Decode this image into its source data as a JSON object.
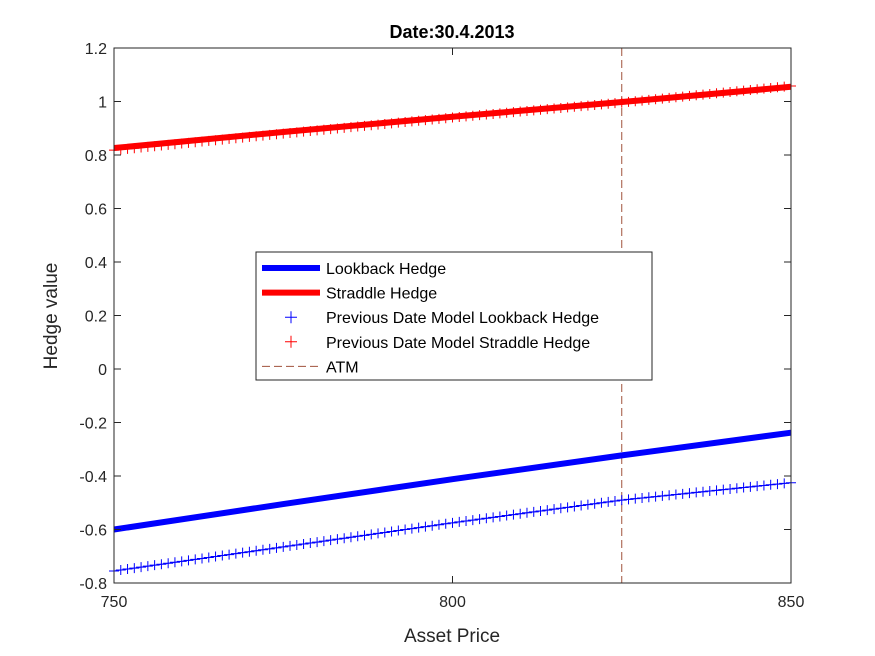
{
  "chart_data": {
    "type": "line",
    "title": "Date:30.4.2013",
    "xlabel": "Asset Price",
    "ylabel": "Hedge value",
    "xlim": [
      750,
      850
    ],
    "ylim": [
      -0.8,
      1.2
    ],
    "xticks": [
      750,
      800,
      850
    ],
    "xtick_labels": [
      "750",
      "800",
      "850"
    ],
    "yticks": [
      -0.8,
      -0.6,
      -0.4,
      -0.2,
      0,
      0.2,
      0.4,
      0.6,
      0.8,
      1,
      1.2
    ],
    "ytick_labels": [
      "-0.8",
      "-0.6",
      "-0.4",
      "-0.2",
      "0",
      "0.2",
      "0.4",
      "0.6",
      "0.8",
      "1",
      "1.2"
    ],
    "grid": false,
    "legend_position": "center-left",
    "series": [
      {
        "name": "Lookback Hedge",
        "style": "line",
        "color": "#0000ff",
        "x": [
          750,
          775,
          800,
          825,
          850
        ],
        "y": [
          -0.6,
          -0.505,
          -0.412,
          -0.323,
          -0.238
        ]
      },
      {
        "name": "Straddle Hedge",
        "style": "line",
        "color": "#ff0000",
        "x": [
          750,
          775,
          800,
          825,
          850
        ],
        "y": [
          0.826,
          0.886,
          0.943,
          0.998,
          1.055
        ]
      },
      {
        "name": "Previous Date Model Lookback Hedge",
        "style": "plus",
        "color": "#0000ff",
        "x": [
          750,
          775,
          800,
          825,
          850
        ],
        "y": [
          -0.755,
          -0.665,
          -0.575,
          -0.49,
          -0.425
        ]
      },
      {
        "name": "Previous Date Model Straddle Hedge",
        "style": "plus",
        "color": "#ff0000",
        "x": [
          750,
          775,
          800,
          825,
          850
        ],
        "y": [
          0.818,
          0.88,
          0.94,
          0.996,
          1.058
        ]
      },
      {
        "name": "ATM",
        "style": "dashed-vertical",
        "color": "#a0523c",
        "x": [
          825,
          825
        ],
        "y": [
          -0.8,
          1.2
        ]
      }
    ]
  }
}
